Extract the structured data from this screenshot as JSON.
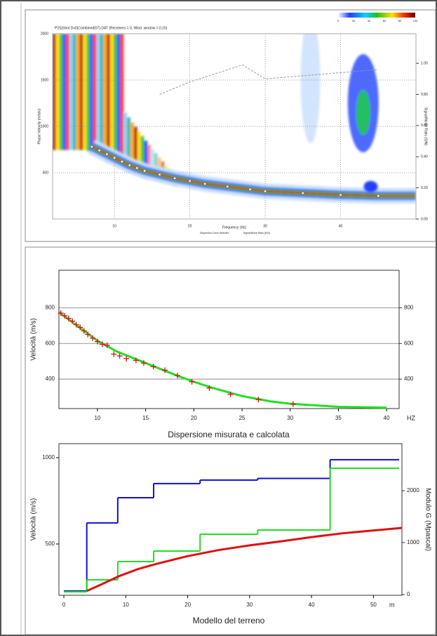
{
  "chart_data": [
    {
      "type": "dispersion-image",
      "title": "P2S(Shot Dx0)Combined(07).DAT (Receivers = 0, Wind. window = 0.15)",
      "xlabel": "Frequency (Hz)",
      "ylabel": "Phase Velocity (m/sec)",
      "y2label": "Signal/Noise Ratio (S/N)",
      "xlim": [
        1.8,
        50
      ],
      "ylim": [
        0,
        2000
      ],
      "y2lim": [
        0,
        1.19
      ],
      "xticks": [
        10,
        20,
        30,
        40
      ],
      "yticks": [
        500,
        1000,
        1500,
        2000
      ],
      "y2ticks": [
        {
          "value": 0,
          "label": "0.00"
        },
        {
          "value": 0.2,
          "label": "0.20"
        },
        {
          "value": 0.4,
          "label": "0.40"
        },
        {
          "value": 0.6,
          "label": "0.60"
        },
        {
          "value": 0.8,
          "label": "0.80"
        },
        {
          "value": 1,
          "label": "1.00"
        }
      ],
      "colorbar_ticks": [
        0,
        20,
        40,
        60,
        80,
        100
      ],
      "grid": true,
      "series": [
        {
          "name": "Dispersion Curve Selected",
          "style": "dots",
          "color": "#ffffff",
          "x": [
            7,
            8,
            9,
            10,
            11,
            12,
            13,
            14,
            16,
            18,
            20,
            22,
            25,
            28,
            30,
            35,
            40,
            45
          ],
          "values": [
            780,
            740,
            700,
            660,
            620,
            580,
            550,
            520,
            480,
            440,
            410,
            380,
            350,
            320,
            300,
            280,
            260,
            250
          ]
        },
        {
          "name": "Signal/Noise Ratio (S/N)",
          "style": "dashed",
          "color": "#999999",
          "axis": "y2",
          "x": [
            16,
            20,
            27,
            30,
            45
          ],
          "values": [
            0.8,
            0.88,
            0.99,
            0.9,
            0.96
          ]
        }
      ]
    },
    {
      "type": "line",
      "title": "Dispersione misurata e calcolata",
      "ylabel": "Velocità (m/s)",
      "xunit": "HZ",
      "xlim": [
        6,
        41.3
      ],
      "ylim": [
        235,
        1010
      ],
      "y2lim": [
        235,
        1010
      ],
      "xticks": [
        10,
        15,
        20,
        25,
        30,
        35,
        40
      ],
      "yticks": [
        400,
        600,
        800
      ],
      "y2ticks": [
        400,
        600,
        800
      ],
      "grid": true,
      "series": [
        {
          "style": "line",
          "color": "#22dd22",
          "x": [
            6,
            8,
            10,
            12,
            15,
            18,
            20,
            22,
            25,
            28,
            30,
            35,
            40
          ],
          "values": [
            775,
            695,
            615,
            555,
            490,
            425,
            385,
            350,
            305,
            275,
            262,
            245,
            240
          ]
        },
        {
          "style": "plus",
          "color": "#dd1111",
          "x": [
            6.2,
            6.6,
            7,
            7.4,
            7.8,
            8.2,
            8.6,
            9,
            9.5,
            10,
            10.5,
            11,
            11.7,
            12.3,
            13,
            14,
            14.8,
            15.8,
            17,
            18.3,
            19.8,
            21.6,
            23.8,
            26.7,
            30.3
          ],
          "values": [
            770,
            755,
            740,
            725,
            705,
            690,
            670,
            650,
            630,
            610,
            595,
            590,
            540,
            530,
            515,
            505,
            490,
            470,
            450,
            420,
            385,
            350,
            315,
            285,
            260
          ]
        }
      ]
    },
    {
      "type": "step",
      "title": "Modello del terreno",
      "ylabel": "Velocità (m/s)",
      "y2label": "Modulo G (Mpascal)",
      "xunit": "m",
      "xlim": [
        -0.8,
        54.6
      ],
      "ylim": [
        203,
        1081
      ],
      "y2lim": [
        -14,
        2905
      ],
      "xticks": [
        0,
        10,
        20,
        30,
        40,
        50
      ],
      "yticks": [
        500,
        1000
      ],
      "y2ticks": [
        0,
        1000,
        2000
      ],
      "grid": false,
      "series": [
        {
          "style": "step",
          "color": "#1111cc",
          "x": [
            0,
            3.7,
            8.7,
            14.5,
            22,
            31.3,
            43
          ],
          "values": [
            228,
            622,
            768,
            850,
            870,
            880,
            988
          ]
        },
        {
          "style": "step",
          "color": "#22dd22",
          "axis": "y2",
          "x": [
            0,
            3.7,
            8.7,
            14.5,
            22,
            31.3,
            43
          ],
          "values": [
            54,
            284,
            635,
            838,
            1162,
            1243,
            2432
          ]
        },
        {
          "style": "line",
          "color": "#dd1111",
          "x": [
            3.7,
            6,
            9,
            12,
            15,
            20,
            25,
            30,
            35,
            40,
            45,
            54.6
          ],
          "values": [
            228,
            265,
            315,
            355,
            385,
            430,
            465,
            492,
            515,
            540,
            562,
            593
          ]
        }
      ]
    }
  ]
}
